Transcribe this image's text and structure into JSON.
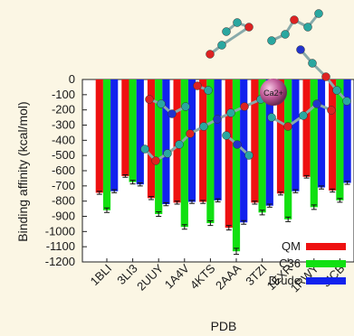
{
  "chart_data": {
    "type": "bar",
    "xlabel": "PDB",
    "ylabel": "Binding affinity (kcal/mol)",
    "ylim": [
      -1200,
      0
    ],
    "yticks": [
      0,
      -100,
      -200,
      -300,
      -400,
      -500,
      -600,
      -700,
      -800,
      -900,
      -1000,
      -1100,
      -1200
    ],
    "categories": [
      "1BLI",
      "3LI3",
      "2UUY",
      "1A4V",
      "4KTS",
      "2AAA",
      "3TZI",
      "1EXR",
      "1RWY",
      "3ICB"
    ],
    "series": [
      {
        "name": "QM",
        "color": "#ee1111",
        "values": [
          -745,
          -635,
          -780,
          -810,
          -805,
          -975,
          -810,
          -750,
          -640,
          -730
        ],
        "errors": [
          10,
          8,
          10,
          10,
          10,
          15,
          10,
          10,
          8,
          10
        ]
      },
      {
        "name": "C36",
        "color": "#11e011",
        "values": [
          -860,
          -675,
          -885,
          -970,
          -945,
          -1130,
          -875,
          -920,
          -840,
          -795
        ],
        "errors": [
          15,
          12,
          15,
          15,
          15,
          20,
          15,
          15,
          15,
          12
        ]
      },
      {
        "name": "Drude",
        "color": "#1122ee",
        "values": [
          -735,
          -690,
          -820,
          -805,
          -795,
          -940,
          -830,
          -735,
          -710,
          -680
        ],
        "errors": [
          10,
          10,
          10,
          10,
          10,
          12,
          10,
          10,
          10,
          10
        ]
      }
    ],
    "legend_position": "bottom-right",
    "grid": false
  },
  "overlay": {
    "ion_label": "Ca2+",
    "description_icon": "molecule-illustration"
  }
}
